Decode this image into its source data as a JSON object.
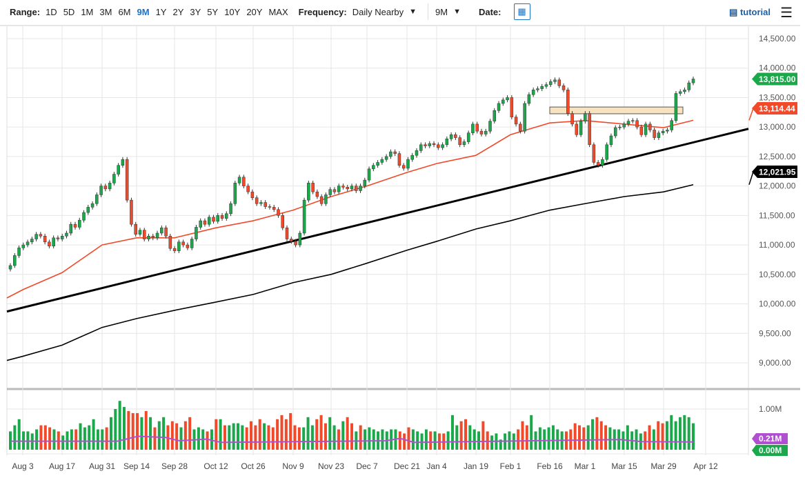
{
  "toolbar": {
    "range_label": "Range:",
    "ranges": [
      "1D",
      "5D",
      "1M",
      "3M",
      "6M",
      "9M",
      "1Y",
      "2Y",
      "3Y",
      "5Y",
      "10Y",
      "20Y",
      "MAX"
    ],
    "active_range": "9M",
    "frequency_label": "Frequency:",
    "frequency": "Daily Nearby",
    "period": "9M",
    "date_label": "Date:",
    "tutorial": "tutorial",
    "icons": {
      "calendar": "calendar-icon",
      "tutorial": "film-icon",
      "menu": "hamburger-icon"
    }
  },
  "chart_data": {
    "type": "candlestick",
    "y_ticks": [
      "14,500.00",
      "14,000.00",
      "13,500.00",
      "13,000.00",
      "12,500.00",
      "12,000.00",
      "11,500.00",
      "11,000.00",
      "10,500.00",
      "10,000.00",
      "9,500.00",
      "9,000.00"
    ],
    "ylim": [
      8600,
      14800
    ],
    "x_ticks": [
      "Aug 3",
      "Aug 17",
      "Aug 31",
      "Sep 14",
      "Sep 28",
      "Oct 12",
      "Oct 26",
      "Nov 9",
      "Nov 23",
      "Dec 7",
      "Dec 21",
      "Jan 4",
      "Jan 19",
      "Feb 1",
      "Feb 16",
      "Mar 1",
      "Mar 15",
      "Mar 29",
      "Apr 12"
    ],
    "closes": [
      10650,
      10820,
      10950,
      11000,
      11050,
      11100,
      11180,
      11150,
      11050,
      10980,
      11120,
      11100,
      11150,
      11200,
      11350,
      11300,
      11420,
      11550,
      11640,
      11700,
      11850,
      12000,
      11950,
      12050,
      12200,
      12350,
      12450,
      11760,
      11350,
      11180,
      11250,
      11100,
      11150,
      11120,
      11200,
      11290,
      11150,
      10940,
      10900,
      11050,
      11000,
      10950,
      11100,
      11300,
      11410,
      11350,
      11470,
      11400,
      11500,
      11450,
      11530,
      11700,
      12050,
      12150,
      12000,
      11900,
      11800,
      11700,
      11720,
      11650,
      11640,
      11600,
      11500,
      11290,
      11100,
      11060,
      11000,
      11200,
      11760,
      12050,
      11900,
      11820,
      11700,
      11850,
      11940,
      11900,
      12000,
      11980,
      11950,
      12000,
      11920,
      12000,
      12100,
      12290,
      12350,
      12400,
      12450,
      12500,
      12580,
      12550,
      12350,
      12300,
      12450,
      12520,
      12600,
      12700,
      12680,
      12720,
      12700,
      12650,
      12700,
      12800,
      12870,
      12820,
      12700,
      12750,
      12900,
      13050,
      12930,
      12880,
      12930,
      13100,
      13280,
      13400,
      13460,
      13500,
      13170,
      13050,
      12930,
      13400,
      13550,
      13630,
      13650,
      13690,
      13720,
      13770,
      13800,
      13700,
      13630,
      13230,
      13050,
      12870,
      13100,
      13230,
      12700,
      12400,
      12350,
      12450,
      12700,
      12850,
      12990,
      13000,
      13050,
      13100,
      13110,
      13000,
      12870,
      13050,
      12950,
      12820,
      12900,
      12930,
      12950,
      13110,
      13570,
      13600,
      13630,
      13750,
      13815
    ],
    "volumes_m": [
      0.45,
      0.6,
      0.75,
      0.45,
      0.45,
      0.4,
      0.5,
      0.6,
      0.6,
      0.55,
      0.5,
      0.45,
      0.35,
      0.45,
      0.5,
      0.5,
      0.65,
      0.55,
      0.6,
      0.75,
      0.5,
      0.5,
      0.55,
      0.8,
      1.0,
      1.2,
      1.05,
      0.95,
      0.9,
      0.9,
      0.8,
      0.95,
      0.8,
      0.55,
      0.7,
      0.8,
      0.6,
      0.7,
      0.65,
      0.55,
      0.7,
      0.8,
      0.5,
      0.55,
      0.5,
      0.45,
      0.5,
      0.75,
      0.75,
      0.6,
      0.6,
      0.65,
      0.65,
      0.6,
      0.55,
      0.7,
      0.6,
      0.75,
      0.65,
      0.6,
      0.55,
      0.75,
      0.85,
      0.75,
      0.9,
      0.6,
      0.55,
      0.55,
      0.8,
      0.6,
      0.75,
      0.85,
      0.65,
      0.8,
      0.6,
      0.5,
      0.7,
      0.8,
      0.65,
      0.45,
      0.6,
      0.5,
      0.55,
      0.5,
      0.45,
      0.5,
      0.45,
      0.5,
      0.5,
      0.45,
      0.4,
      0.55,
      0.5,
      0.45,
      0.4,
      0.5,
      0.45,
      0.45,
      0.4,
      0.4,
      0.45,
      0.85,
      0.6,
      0.7,
      0.75,
      0.6,
      0.5,
      0.45,
      0.7,
      0.45,
      0.35,
      0.4,
      0.25,
      0.4,
      0.45,
      0.4,
      0.5,
      0.7,
      0.6,
      0.85,
      0.45,
      0.55,
      0.5,
      0.55,
      0.6,
      0.5,
      0.45,
      0.45,
      0.5,
      0.65,
      0.6,
      0.55,
      0.6,
      0.75,
      0.8,
      0.7,
      0.6,
      0.55,
      0.5,
      0.5,
      0.45,
      0.6,
      0.45,
      0.5,
      0.4,
      0.45,
      0.6,
      0.5,
      0.7,
      0.65,
      0.7,
      0.85,
      0.7,
      0.8,
      0.85,
      0.8,
      0.65
    ],
    "ma50": [
      10100,
      10240,
      10530,
      11000,
      11120,
      11120,
      11290,
      11410,
      11590,
      11820,
      12000,
      12230,
      12380,
      12520,
      12870,
      13070,
      13110,
      13050,
      12990,
      13114.44
    ],
    "ma200": [
      9040,
      9110,
      9300,
      9600,
      9750,
      9890,
      10030,
      10160,
      10360,
      10500,
      10690,
      10910,
      11060,
      11270,
      11410,
      11590,
      11700,
      11820,
      11900,
      12021.95
    ],
    "trendline": [
      9870,
      12970
    ],
    "resistance_zone": [
      13225,
      13340
    ],
    "last_price": "13,815.00",
    "ma50_last": "13,114.44",
    "ma200_last": "12,021.95",
    "volume_ticks": [
      "1.00M"
    ],
    "volume_ma_last": "0.21M",
    "volume_zero": "0.00M",
    "colors": {
      "up": "#1aa84a",
      "down": "#f04a2a",
      "ma50": "#f04a2a",
      "ma200": "#000000",
      "volume_ma": "#b050d0",
      "zone": "#f8e3c0"
    }
  }
}
